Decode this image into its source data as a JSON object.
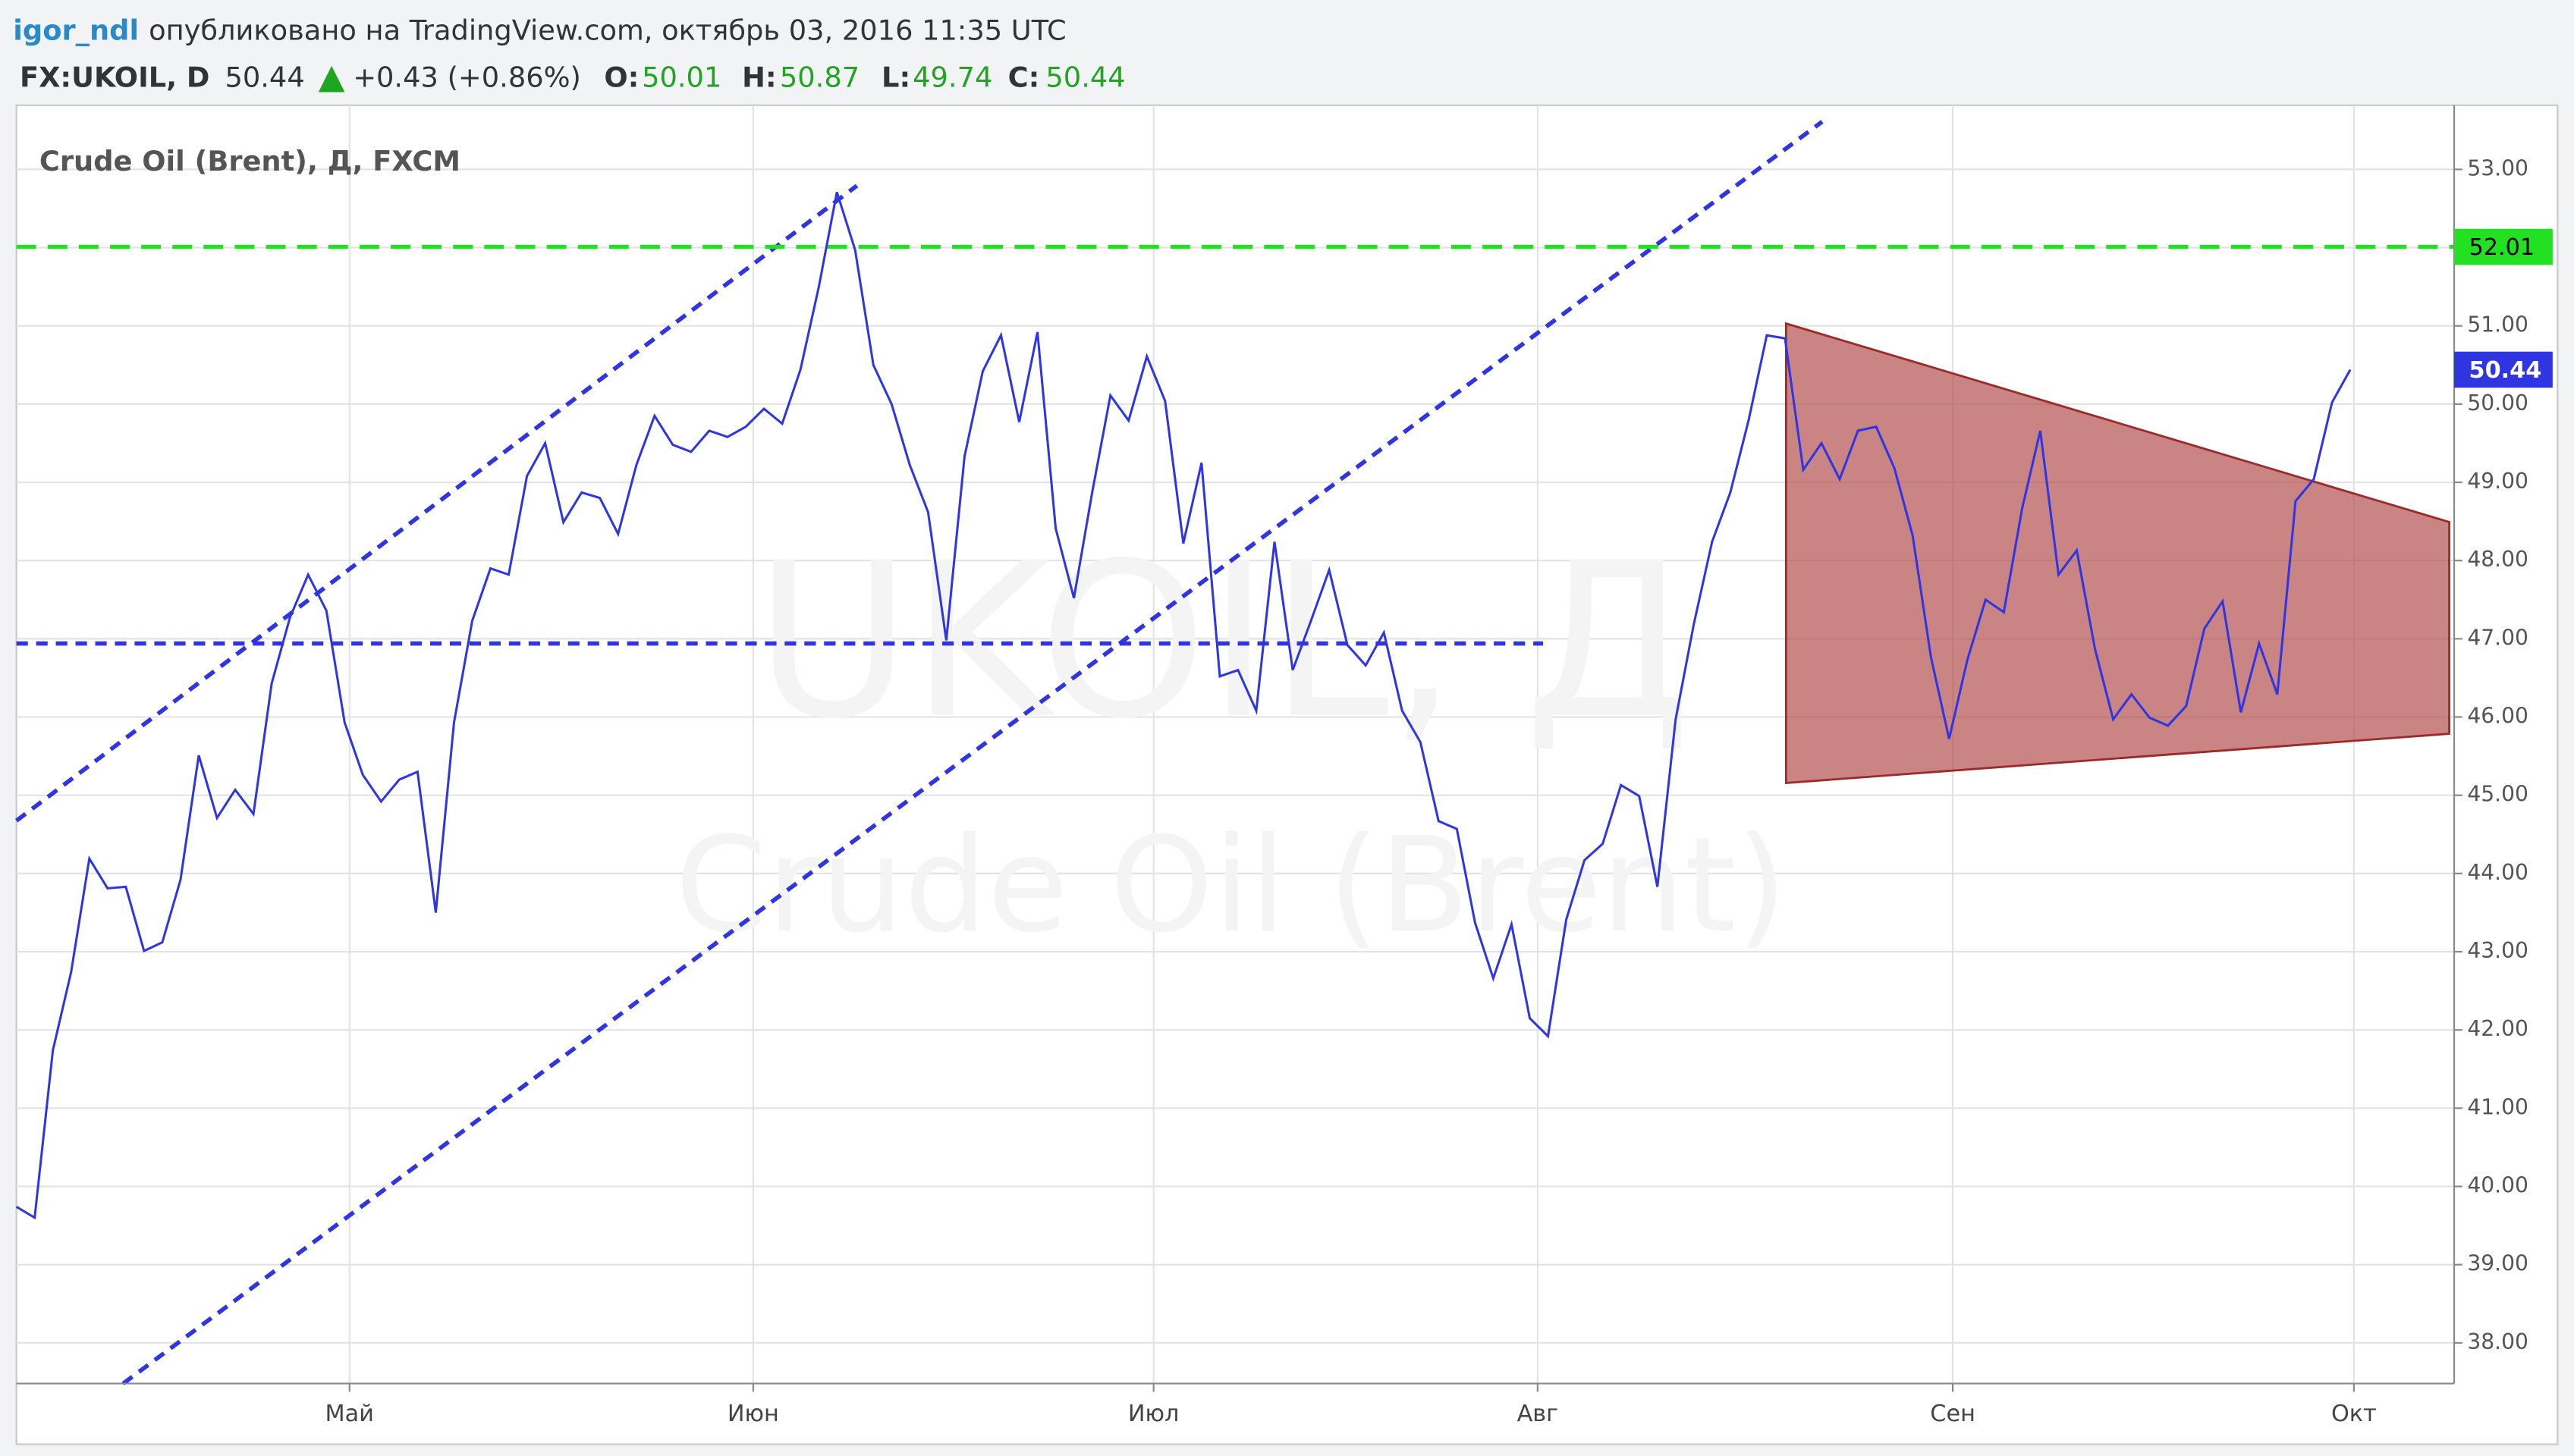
{
  "header": {
    "author": "igor_ndl",
    "published": "опубликовано на TradingView.com, октябрь 03, 2016 11:35 UTC",
    "symbol": "FX:UKOIL, D",
    "last": "50.44",
    "change": "+0.43 (+0.86%)",
    "open_label": "O:",
    "open": "50.01",
    "high_label": "H:",
    "high": "50.87",
    "low_label": "L:",
    "low": "49.74",
    "close_label": "C:",
    "close": "50.44"
  },
  "chart_data": {
    "type": "line",
    "title": "Crude Oil (Brent), Д, FXCM",
    "watermark": "UKOIL, Д",
    "watermark_subtitle": "Crude Oil (Brent)",
    "series": [
      {
        "name": "UKOIL",
        "color": "#2f35e0",
        "values": [
          39.74,
          39.6,
          41.74,
          42.74,
          44.19,
          43.81,
          43.83,
          43.01,
          43.12,
          43.92,
          45.51,
          44.71,
          45.07,
          44.76,
          46.43,
          47.27,
          47.82,
          47.36,
          45.93,
          45.26,
          44.92,
          45.2,
          45.3,
          43.5,
          45.93,
          47.23,
          47.9,
          47.82,
          49.08,
          49.5,
          48.49,
          48.87,
          48.8,
          48.34,
          49.22,
          49.85,
          49.48,
          49.39,
          49.66,
          49.58,
          49.71,
          49.94,
          49.75,
          50.44,
          51.49,
          52.71,
          51.97,
          50.5,
          50.0,
          49.22,
          48.62,
          46.98,
          49.33,
          50.42,
          50.88,
          49.77,
          50.92,
          48.41,
          47.52,
          48.87,
          50.11,
          49.79,
          50.61,
          50.04,
          48.22,
          49.25,
          46.52,
          46.6,
          46.08,
          48.24,
          46.6,
          47.23,
          47.88,
          46.92,
          46.66,
          47.08,
          46.08,
          45.68,
          44.67,
          44.57,
          43.37,
          42.66,
          43.35,
          42.15,
          41.92,
          43.41,
          44.17,
          44.38,
          45.13,
          44.99,
          43.83,
          45.97,
          47.19,
          48.24,
          48.87,
          49.79,
          50.88,
          50.84,
          49.16,
          49.5,
          49.04,
          49.66,
          49.71,
          49.18,
          48.32,
          46.77,
          45.72,
          46.73,
          47.5,
          47.34,
          48.66,
          49.66,
          47.82,
          48.13,
          46.87,
          45.97,
          46.29,
          45.99,
          45.89,
          46.14,
          47.13,
          47.48,
          46.06,
          46.94,
          46.29,
          48.76,
          49.04,
          50.02,
          50.44
        ]
      }
    ],
    "reference_line": {
      "value": 52.01,
      "color": "#22e022"
    },
    "xlim": [
      0,
      133.7
    ],
    "xticks": [
      {
        "value": 18.27,
        "label": "Май"
      },
      {
        "value": 40.41,
        "label": "Июн"
      },
      {
        "value": 62.37,
        "label": "Июл"
      },
      {
        "value": 83.43,
        "label": "Авг"
      },
      {
        "value": 106.2,
        "label": "Сен"
      },
      {
        "value": 128.2,
        "label": "Окт"
      }
    ],
    "ylim": [
      37.48,
      53.82
    ],
    "yticks": [
      {
        "value": 38,
        "label": "38.00"
      },
      {
        "value": 39,
        "label": "39.00"
      },
      {
        "value": 40,
        "label": "40.00"
      },
      {
        "value": 41,
        "label": "41.00"
      },
      {
        "value": 42,
        "label": "42.00"
      },
      {
        "value": 43,
        "label": "43.00"
      },
      {
        "value": 44,
        "label": "44.00"
      },
      {
        "value": 45,
        "label": "45.00"
      },
      {
        "value": 46,
        "label": "46.00"
      },
      {
        "value": 47,
        "label": "47.00"
      },
      {
        "value": 48,
        "label": "48.00"
      },
      {
        "value": 49,
        "label": "49.00"
      },
      {
        "value": 50,
        "label": "50.00"
      },
      {
        "value": 51,
        "label": "51.00"
      },
      {
        "value": 52,
        "label": "52.00"
      },
      {
        "value": 53,
        "label": "53.00"
      }
    ],
    "grid": true
  }
}
